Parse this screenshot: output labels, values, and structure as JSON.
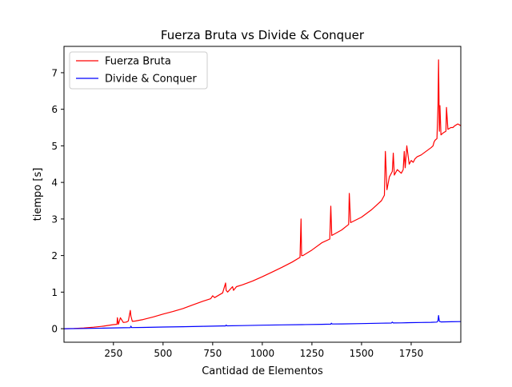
{
  "chart_data": {
    "type": "line",
    "title": "Fuerza Bruta vs Divide & Conquer",
    "xlabel": "Cantidad de Elementos",
    "ylabel": "tiempo [s]",
    "xlim": [
      1,
      2000
    ],
    "ylim": [
      -0.37,
      7.72
    ],
    "xticks": [
      250,
      500,
      750,
      1000,
      1250,
      1500,
      1750
    ],
    "yticks": [
      0,
      1,
      2,
      3,
      4,
      5,
      6,
      7
    ],
    "grid": false,
    "legend_position": "top-left",
    "series": [
      {
        "name": "Fuerza Bruta",
        "color": "#ff0000",
        "x": [
          1,
          50,
          100,
          150,
          200,
          250,
          268,
          270,
          275,
          285,
          300,
          315,
          325,
          335,
          338,
          345,
          360,
          400,
          450,
          500,
          550,
          600,
          650,
          700,
          740,
          750,
          760,
          800,
          815,
          818,
          825,
          850,
          855,
          870,
          900,
          950,
          1000,
          1050,
          1100,
          1150,
          1190,
          1195,
          1198,
          1205,
          1250,
          1300,
          1340,
          1345,
          1350,
          1400,
          1435,
          1438,
          1445,
          1500,
          1550,
          1600,
          1615,
          1620,
          1628,
          1640,
          1655,
          1660,
          1665,
          1680,
          1700,
          1710,
          1715,
          1720,
          1728,
          1740,
          1750,
          1760,
          1770,
          1780,
          1800,
          1850,
          1860,
          1865,
          1870,
          1880,
          1885,
          1888,
          1892,
          1895,
          1900,
          1910,
          1925,
          1928,
          1935,
          1950,
          1960,
          1970,
          1985,
          2000
        ],
        "y": [
          0,
          0.005,
          0.02,
          0.04,
          0.07,
          0.11,
          0.12,
          0.3,
          0.12,
          0.3,
          0.17,
          0.18,
          0.21,
          0.5,
          0.35,
          0.2,
          0.21,
          0.25,
          0.32,
          0.4,
          0.47,
          0.55,
          0.65,
          0.75,
          0.82,
          0.9,
          0.85,
          0.98,
          1.25,
          1.05,
          1.0,
          1.15,
          1.05,
          1.15,
          1.2,
          1.3,
          1.42,
          1.55,
          1.68,
          1.82,
          1.95,
          3.0,
          2.0,
          2.0,
          2.15,
          2.35,
          2.45,
          3.35,
          2.55,
          2.7,
          2.85,
          3.7,
          2.9,
          3.05,
          3.25,
          3.5,
          3.65,
          4.85,
          3.8,
          4.15,
          4.3,
          4.8,
          4.2,
          4.35,
          4.25,
          4.35,
          4.85,
          4.4,
          5.0,
          4.5,
          4.6,
          4.55,
          4.65,
          4.7,
          4.75,
          4.95,
          5.0,
          5.1,
          5.15,
          5.2,
          6.1,
          7.35,
          5.4,
          6.1,
          5.3,
          5.35,
          5.4,
          6.05,
          5.45,
          5.5,
          5.5,
          5.55,
          5.6,
          5.55
        ]
      },
      {
        "name": "Divide & Conquer",
        "color": "#0000ff",
        "x": [
          1,
          100,
          200,
          300,
          335,
          338,
          342,
          400,
          500,
          600,
          700,
          800,
          815,
          818,
          822,
          900,
          1000,
          1100,
          1200,
          1300,
          1345,
          1348,
          1352,
          1400,
          1500,
          1600,
          1650,
          1655,
          1660,
          1700,
          1750,
          1800,
          1850,
          1880,
          1885,
          1888,
          1892,
          1900,
          1950,
          2000
        ],
        "y": [
          0,
          0.005,
          0.015,
          0.025,
          0.028,
          0.07,
          0.03,
          0.035,
          0.045,
          0.055,
          0.065,
          0.075,
          0.076,
          0.1,
          0.078,
          0.085,
          0.095,
          0.105,
          0.11,
          0.12,
          0.125,
          0.15,
          0.128,
          0.13,
          0.14,
          0.15,
          0.155,
          0.18,
          0.158,
          0.16,
          0.165,
          0.17,
          0.175,
          0.18,
          0.22,
          0.36,
          0.2,
          0.185,
          0.19,
          0.195
        ]
      }
    ]
  }
}
